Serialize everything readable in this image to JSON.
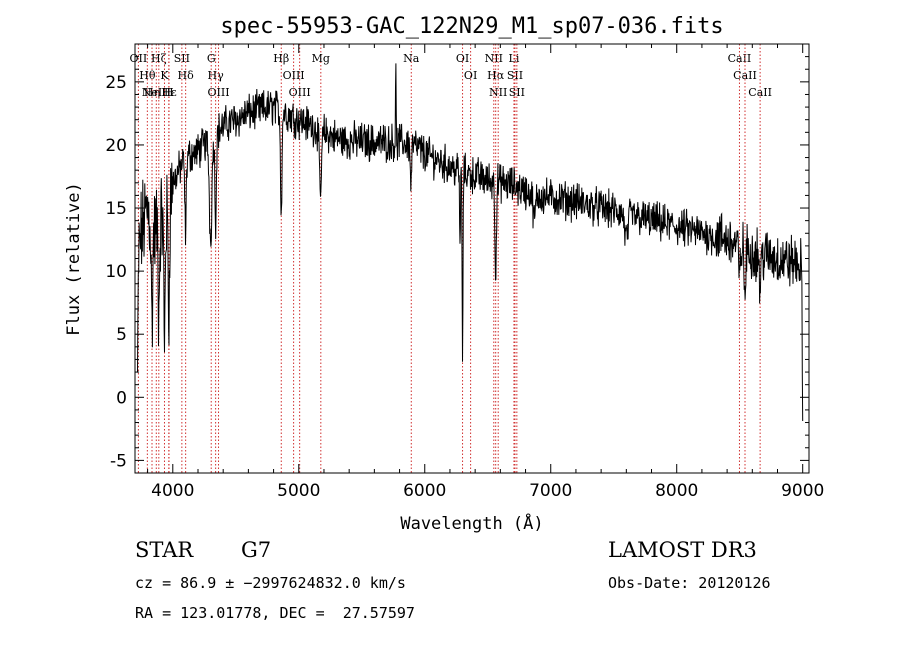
{
  "chart_data": {
    "type": "line",
    "title": "spec-55953-GAC_122N29_M1_sp07-036.fits",
    "xlabel": "Wavelength (Å)",
    "ylabel": "Flux (relative)",
    "xlim": [
      3700,
      9050
    ],
    "ylim": [
      -6,
      28
    ],
    "xticks": [
      4000,
      5000,
      6000,
      7000,
      8000,
      9000
    ],
    "xtick_labels": [
      "4000",
      "5000",
      "6000",
      "7000",
      "8000",
      "9000"
    ],
    "yticks": [
      -5,
      0,
      5,
      10,
      15,
      20,
      25
    ],
    "ytick_labels": [
      "-5",
      "0",
      "5",
      "10",
      "15",
      "20",
      "25"
    ],
    "grid": false,
    "continuum": {
      "x": [
        3700,
        3750,
        3800,
        3850,
        3900,
        3950,
        4000,
        4100,
        4200,
        4300,
        4400,
        4500,
        4600,
        4700,
        4800,
        4900,
        5000,
        5100,
        5200,
        5300,
        5400,
        5500,
        5600,
        5700,
        5800,
        5900,
        6000,
        6100,
        6200,
        6300,
        6400,
        6500,
        6600,
        6700,
        6800,
        6900,
        7000,
        7200,
        7400,
        7600,
        7800,
        8000,
        8200,
        8400,
        8600,
        8800,
        9000
      ],
      "y": [
        9,
        13,
        15,
        13,
        14,
        14,
        17,
        19,
        19.5,
        20.5,
        21.5,
        22,
        22.5,
        22.8,
        23,
        22.5,
        22,
        21.5,
        21,
        20.5,
        20.3,
        20.3,
        20.2,
        20.2,
        20.2,
        20.1,
        19.3,
        18.8,
        18.3,
        17.8,
        17.6,
        17.2,
        17,
        16.8,
        16.3,
        16,
        15.8,
        15.5,
        15,
        14.5,
        14,
        13.5,
        13,
        12.5,
        11.5,
        11,
        10.5
      ]
    },
    "absorption_features": [
      {
        "x": 3720,
        "depth": 9,
        "width": 6
      },
      {
        "x": 3835,
        "depth": 8,
        "width": 8
      },
      {
        "x": 3889,
        "depth": 7,
        "width": 8
      },
      {
        "x": 3934,
        "depth": 10,
        "width": 7
      },
      {
        "x": 3968,
        "depth": 9,
        "width": 7
      },
      {
        "x": 4101,
        "depth": 6,
        "width": 8
      },
      {
        "x": 4300,
        "depth": 8,
        "width": 14
      },
      {
        "x": 4340,
        "depth": 7,
        "width": 8
      },
      {
        "x": 4861,
        "depth": 8,
        "width": 8
      },
      {
        "x": 5172,
        "depth": 5,
        "width": 12
      },
      {
        "x": 5890,
        "depth": 3,
        "width": 8
      },
      {
        "x": 6280,
        "depth": 6,
        "width": 5
      },
      {
        "x": 6300,
        "depth": 17,
        "width": 4
      },
      {
        "x": 6563,
        "depth": 7,
        "width": 8
      },
      {
        "x": 6870,
        "depth": 2,
        "width": 14
      },
      {
        "x": 7600,
        "depth": 2,
        "width": 18
      },
      {
        "x": 8498,
        "depth": 3,
        "width": 8
      },
      {
        "x": 8542,
        "depth": 4,
        "width": 8
      },
      {
        "x": 8662,
        "depth": 3,
        "width": 8
      },
      {
        "x": 9000,
        "depth": 11,
        "width": 6
      }
    ],
    "emission_features": [
      {
        "x": 5770,
        "height": 7,
        "width": 3
      }
    ],
    "noise_amplitude": 1.2,
    "line_markers": [
      {
        "x": 3727,
        "label": "OII"
      },
      {
        "x": 3798,
        "label": "Hθ"
      },
      {
        "x": 3835,
        "label": "Hη"
      },
      {
        "x": 3869,
        "label": "NeIII"
      },
      {
        "x": 3889,
        "label": "Hζ"
      },
      {
        "x": 3934,
        "label": "K"
      },
      {
        "x": 3968,
        "label": "H"
      },
      {
        "x": 3970,
        "label": "Hε"
      },
      {
        "x": 4072,
        "label": "SII"
      },
      {
        "x": 4102,
        "label": "Hδ"
      },
      {
        "x": 4305,
        "label": "G"
      },
      {
        "x": 4340,
        "label": "Hγ"
      },
      {
        "x": 4363,
        "label": "OIII"
      },
      {
        "x": 4861,
        "label": "Hβ"
      },
      {
        "x": 4959,
        "label": "OIII"
      },
      {
        "x": 5007,
        "label": "OIII"
      },
      {
        "x": 5175,
        "label": "Mg"
      },
      {
        "x": 5893,
        "label": "Na"
      },
      {
        "x": 6300,
        "label": "OI"
      },
      {
        "x": 6364,
        "label": "OI"
      },
      {
        "x": 6548,
        "label": "NII"
      },
      {
        "x": 6563,
        "label": "Hα"
      },
      {
        "x": 6583,
        "label": "NII"
      },
      {
        "x": 6708,
        "label": "Li"
      },
      {
        "x": 6716,
        "label": "SII"
      },
      {
        "x": 6731,
        "label": "SII"
      },
      {
        "x": 8498,
        "label": "CaII"
      },
      {
        "x": 8542,
        "label": "CaII"
      },
      {
        "x": 8662,
        "label": "CaII"
      }
    ]
  },
  "info": {
    "object_class": "STAR",
    "subclass": "G7",
    "survey": "LAMOST DR3",
    "cz_line": "cz = 86.9 ± −2997624832.0 km/s",
    "obs_date": "Obs-Date: 20120126",
    "coords": "RA = 123.01778, DEC =  27.57597"
  }
}
